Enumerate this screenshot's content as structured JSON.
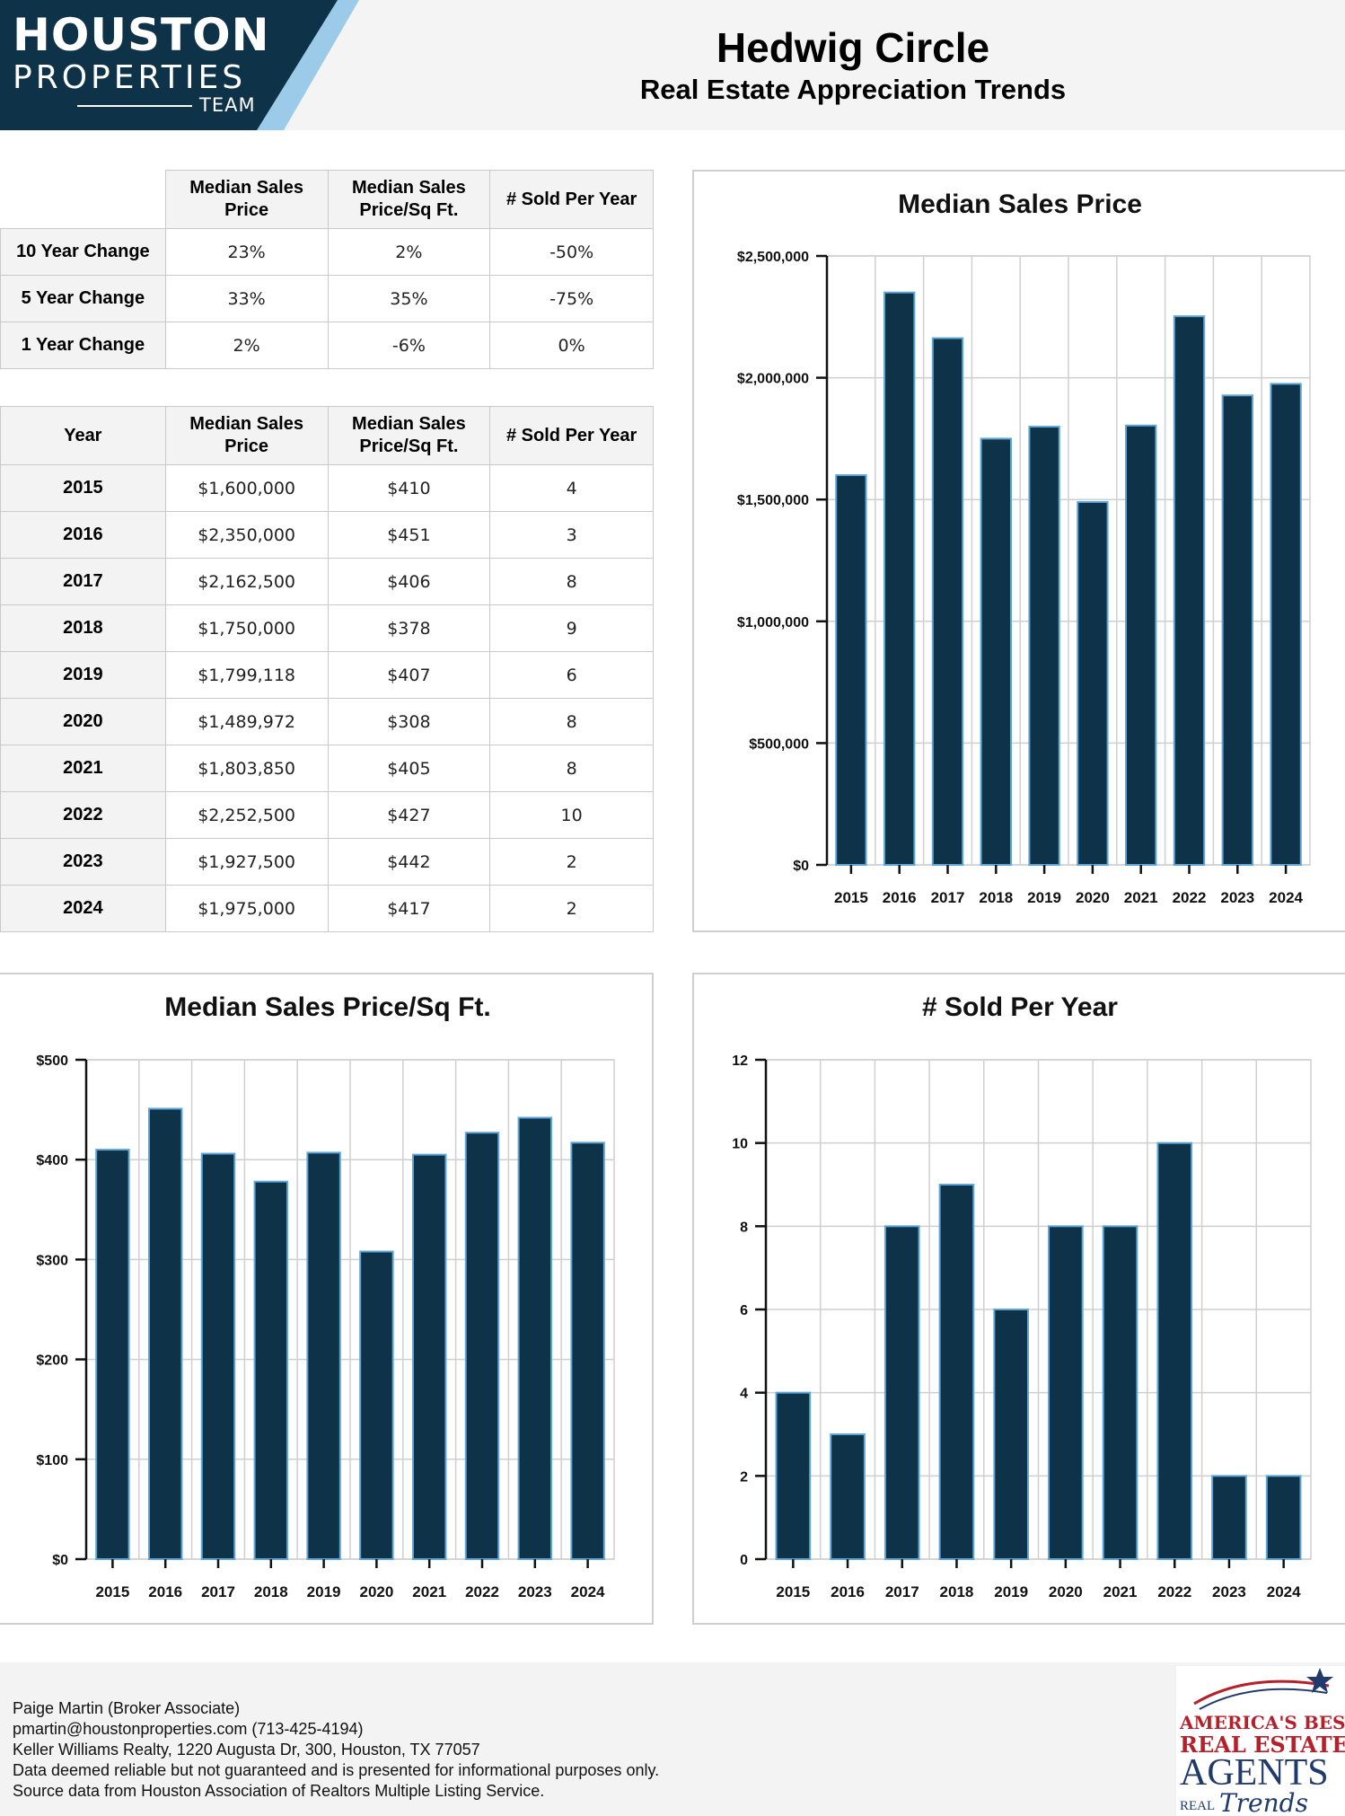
{
  "brand": {
    "line1": "HOUSTON",
    "line2": "PROPERTIES",
    "line3": "TEAM",
    "colors": {
      "navy": "#0e3248",
      "light_blue": "#9ccbea",
      "mid_blue": "#5fa5d6"
    }
  },
  "header": {
    "title": "Hedwig Circle",
    "subtitle": "Real Estate Appreciation Trends"
  },
  "change_table": {
    "headers": [
      "",
      "Median Sales\nPrice",
      "Median Sales\nPrice/Sq Ft.",
      "# Sold Per Year"
    ],
    "rows": [
      {
        "label": "10 Year Change",
        "price": "23%",
        "sqft": "2%",
        "sold": "-50%"
      },
      {
        "label": "5 Year Change",
        "price": "33%",
        "sqft": "35%",
        "sold": "-75%"
      },
      {
        "label": "1 Year Change",
        "price": "2%",
        "sqft": "-6%",
        "sold": "0%"
      }
    ]
  },
  "year_table": {
    "headers": [
      "Year",
      "Median Sales\nPrice",
      "Median Sales\nPrice/Sq Ft.",
      "# Sold Per Year"
    ],
    "rows": [
      {
        "year": "2015",
        "price": "$1,600,000",
        "sqft": "$410",
        "sold": "4"
      },
      {
        "year": "2016",
        "price": "$2,350,000",
        "sqft": "$451",
        "sold": "3"
      },
      {
        "year": "2017",
        "price": "$2,162,500",
        "sqft": "$406",
        "sold": "8"
      },
      {
        "year": "2018",
        "price": "$1,750,000",
        "sqft": "$378",
        "sold": "9"
      },
      {
        "year": "2019",
        "price": "$1,799,118",
        "sqft": "$407",
        "sold": "6"
      },
      {
        "year": "2020",
        "price": "$1,489,972",
        "sqft": "$308",
        "sold": "8"
      },
      {
        "year": "2021",
        "price": "$1,803,850",
        "sqft": "$405",
        "sold": "8"
      },
      {
        "year": "2022",
        "price": "$2,252,500",
        "sqft": "$427",
        "sold": "10"
      },
      {
        "year": "2023",
        "price": "$1,927,500",
        "sqft": "$442",
        "sold": "2"
      },
      {
        "year": "2024",
        "price": "$1,975,000",
        "sqft": "$417",
        "sold": "2"
      }
    ]
  },
  "chart_data": [
    {
      "id": "price",
      "type": "bar",
      "title": "Median Sales Price",
      "xlabel": "",
      "ylabel": "",
      "categories": [
        "2015",
        "2016",
        "2017",
        "2018",
        "2019",
        "2020",
        "2021",
        "2022",
        "2023",
        "2024"
      ],
      "values": [
        1600000,
        2350000,
        2162500,
        1750000,
        1799118,
        1489972,
        1803850,
        2252500,
        1927500,
        1975000
      ],
      "ylim": [
        0,
        2500000
      ],
      "yticks": [
        0,
        500000,
        1000000,
        1500000,
        2000000,
        2500000
      ],
      "ytick_labels": [
        "$0",
        "$500,000",
        "$1,000,000",
        "$1,500,000",
        "$2,000,000",
        "$2,500,000"
      ],
      "grid": true,
      "bar_color": "#0e3248",
      "bar_edge": "#5fa5d6"
    },
    {
      "id": "sqft",
      "type": "bar",
      "title": "Median Sales Price/Sq Ft.",
      "xlabel": "",
      "ylabel": "",
      "categories": [
        "2015",
        "2016",
        "2017",
        "2018",
        "2019",
        "2020",
        "2021",
        "2022",
        "2023",
        "2024"
      ],
      "values": [
        410,
        451,
        406,
        378,
        407,
        308,
        405,
        427,
        442,
        417
      ],
      "ylim": [
        0,
        500
      ],
      "yticks": [
        0,
        100,
        200,
        300,
        400,
        500
      ],
      "ytick_labels": [
        "$0",
        "$100",
        "$200",
        "$300",
        "$400",
        "$500"
      ],
      "grid": true,
      "bar_color": "#0e3248",
      "bar_edge": "#5fa5d6"
    },
    {
      "id": "sold",
      "type": "bar",
      "title": "# Sold Per Year",
      "xlabel": "",
      "ylabel": "",
      "categories": [
        "2015",
        "2016",
        "2017",
        "2018",
        "2019",
        "2020",
        "2021",
        "2022",
        "2023",
        "2024"
      ],
      "values": [
        4,
        3,
        8,
        9,
        6,
        8,
        8,
        10,
        2,
        2
      ],
      "ylim": [
        0,
        12
      ],
      "yticks": [
        0,
        2,
        4,
        6,
        8,
        10,
        12
      ],
      "ytick_labels": [
        "0",
        "2",
        "4",
        "6",
        "8",
        "10",
        "12"
      ],
      "grid": true,
      "bar_color": "#0e3248",
      "bar_edge": "#5fa5d6"
    }
  ],
  "footer": {
    "agent": "Paige Martin (Broker Associate)",
    "contact": "pmartin@houstonproperties.com (713-425-4194)",
    "brokerage": "Keller Williams Realty, 1220 Augusta Dr, 300, Houston, TX 77057",
    "disclaimer": "Data deemed reliable but not guaranteed and is presented for informational purposes only.",
    "source": "Source data from Houston Association of Realtors Multiple Listing Service."
  },
  "award": {
    "line1": "AMERICA'S BEST",
    "line2": "REAL ESTATE",
    "line3": "AGENTS",
    "line4": "REAL",
    "line5": "Trends",
    "colors": {
      "red": "#b5202b",
      "navy": "#1f3a6b"
    }
  }
}
